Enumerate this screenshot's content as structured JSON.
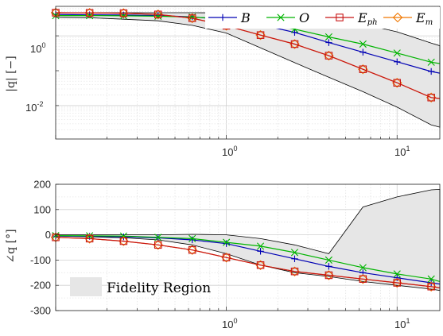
{
  "chart_data": [
    {
      "type": "line",
      "yscale": "log",
      "xscale": "log",
      "xlim": [
        0.1,
        17.8
      ],
      "ylim": [
        0.0011,
        7
      ],
      "ylabel": "|q| [−]",
      "y_ticks": [
        {
          "base": "10",
          "exp": "0"
        },
        {
          "base": "10",
          "exp": "-2"
        }
      ],
      "x_ticks": [
        {
          "base": "10",
          "exp": "0"
        },
        {
          "base": "10",
          "exp": "1"
        }
      ],
      "grid": true,
      "legend_position": "top-right",
      "x": [
        0.1,
        0.158,
        0.25,
        0.398,
        0.631,
        1.0,
        1.585,
        2.512,
        3.981,
        6.31,
        10.0,
        15.85,
        17.8
      ],
      "fidelity_upper": [
        4.6,
        4.6,
        4.6,
        4.6,
        4.6,
        4.55,
        4.5,
        4.3,
        3.2,
        2.2,
        1.3,
        0.62,
        0.52
      ],
      "fidelity_lower": [
        3.4,
        3.3,
        3.0,
        2.7,
        2.0,
        1.2,
        0.45,
        0.17,
        0.065,
        0.025,
        0.009,
        0.0028,
        0.0024
      ],
      "series": [
        {
          "name": "B",
          "color": "#0000b4",
          "marker": "plus",
          "values": [
            4.1,
            4.0,
            3.95,
            3.8,
            3.5,
            2.9,
            2.1,
            1.25,
            0.64,
            0.34,
            0.18,
            0.095,
            0.085
          ]
        },
        {
          "name": "O",
          "color": "#00b400",
          "marker": "x",
          "values": [
            3.8,
            3.8,
            3.75,
            3.65,
            3.45,
            3.05,
            2.4,
            1.55,
            0.93,
            0.58,
            0.32,
            0.175,
            0.16
          ]
        },
        {
          "name": "E_ph",
          "color": "#c81414",
          "marker": "square",
          "values": [
            4.6,
            4.55,
            4.45,
            4.1,
            3.2,
            1.95,
            1.05,
            0.58,
            0.27,
            0.11,
            0.045,
            0.017,
            0.016
          ]
        },
        {
          "name": "E_m",
          "color": "#f07800",
          "marker": "diamond",
          "values": [
            4.6,
            4.55,
            4.45,
            4.1,
            3.2,
            1.95,
            1.05,
            0.58,
            0.27,
            0.11,
            0.045,
            0.017,
            0.016
          ]
        }
      ]
    },
    {
      "type": "line",
      "xscale": "log",
      "xlim": [
        0.1,
        17.8
      ],
      "ylim": [
        -300,
        200
      ],
      "ylabel": "∠q [°]",
      "y_ticks": [
        "200",
        "100",
        "0",
        "-100",
        "-200",
        "-300"
      ],
      "x_ticks": [
        {
          "base": "10",
          "exp": "0"
        },
        {
          "base": "10",
          "exp": "1"
        }
      ],
      "grid": true,
      "legend_position": "bottom-left",
      "legend_label": "Fidelity Region",
      "x": [
        0.1,
        0.158,
        0.25,
        0.398,
        0.631,
        1.0,
        1.585,
        2.512,
        3.981,
        6.31,
        10.0,
        15.85,
        17.8
      ],
      "fidelity_upper": [
        0,
        0,
        0,
        0,
        2,
        0,
        -15,
        -40,
        -75,
        110,
        150,
        178,
        180
      ],
      "fidelity_lower": [
        -5,
        -8,
        -12,
        -20,
        -40,
        -75,
        -120,
        -150,
        -165,
        -185,
        -200,
        -215,
        -220
      ],
      "series": [
        {
          "name": "B",
          "color": "#0000b4",
          "marker": "plus",
          "values": [
            -5,
            -6,
            -8,
            -12,
            -20,
            -35,
            -65,
            -95,
            -125,
            -150,
            -170,
            -190,
            -195
          ]
        },
        {
          "name": "O",
          "color": "#00b400",
          "marker": "x",
          "values": [
            -3,
            -4,
            -5,
            -10,
            -15,
            -30,
            -45,
            -70,
            -100,
            -130,
            -155,
            -175,
            -185
          ]
        },
        {
          "name": "E_ph",
          "color": "#c81414",
          "marker": "square",
          "values": [
            -10,
            -15,
            -25,
            -40,
            -60,
            -90,
            -120,
            -145,
            -160,
            -175,
            -190,
            -205,
            -210
          ]
        },
        {
          "name": "E_m",
          "color": "#f07800",
          "marker": "diamond",
          "values": [
            -10,
            -15,
            -25,
            -40,
            -60,
            -90,
            -120,
            -145,
            -160,
            -175,
            -190,
            -205,
            -210
          ]
        }
      ]
    }
  ],
  "legend": {
    "entries": [
      {
        "label": "B",
        "sub": ""
      },
      {
        "label": "O",
        "sub": ""
      },
      {
        "label": "E",
        "sub": "ph"
      },
      {
        "label": "E",
        "sub": "m"
      }
    ]
  },
  "fidelity_legend_label": "Fidelity Region"
}
